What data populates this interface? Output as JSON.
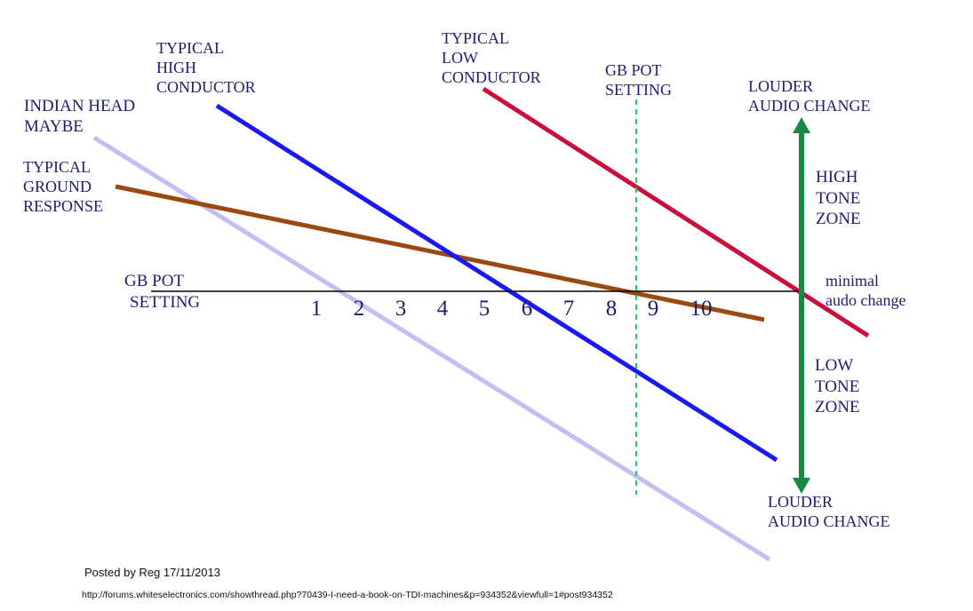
{
  "labels": {
    "high_conductor": [
      "TYPICAL",
      "HIGH",
      "CONDUCTOR"
    ],
    "low_conductor": [
      "TYPICAL",
      "LOW",
      "CONDUCTOR"
    ],
    "indian_head": [
      "INDIAN HEAD",
      "MAYBE"
    ],
    "ground_response": [
      "TYPICAL",
      "GROUND",
      "RESPONSE"
    ],
    "gb_pot_top": [
      "GB POT",
      "SETTING"
    ],
    "gb_pot_axis": [
      "GB POT",
      "SETTING"
    ],
    "louder_top": [
      "LOUDER",
      "AUDIO CHANGE"
    ],
    "louder_bottom": [
      "LOUDER",
      "AUDIO CHANGE"
    ],
    "high_tone": [
      "HIGH",
      "TONE",
      "ZONE"
    ],
    "low_tone": [
      "LOW",
      "TONE",
      "ZONE"
    ],
    "minimal": [
      "minimal",
      "audo change"
    ]
  },
  "axis_ticks": [
    "1",
    "2",
    "3",
    "4",
    "5",
    "6",
    "7",
    "8",
    "9",
    "10"
  ],
  "footer": {
    "posted": "Posted by Reg 17/11/2013",
    "url": "http://forums.whiteselectronics.com/showthread.php?70439-I-need-a-book-on-TDI-machines&p=934352&viewfull=1#post934352"
  },
  "colors": {
    "high_conductor": "#1a1aee",
    "low_conductor": "#c8103c",
    "indian_head": "#c2c0f0",
    "ground_response": "#9a4a10",
    "gb_pot_marker": "#22cc66",
    "louder_arrow": "#168a3e",
    "axis": "#000000",
    "text": "#1b1f6e"
  }
}
